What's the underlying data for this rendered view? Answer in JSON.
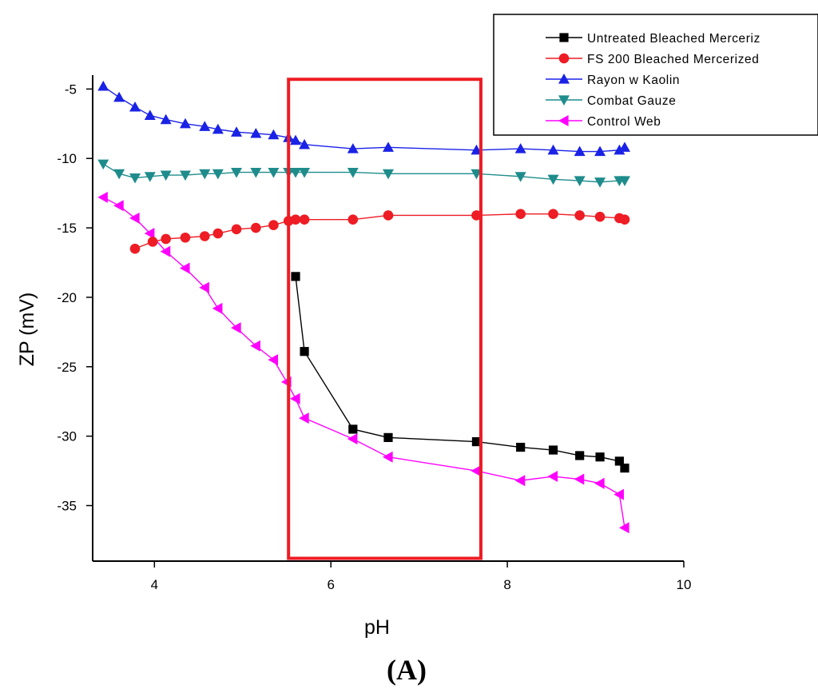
{
  "chart_data": {
    "type": "line",
    "xlabel": "pH",
    "ylabel": "ZP (mV)",
    "xlim": [
      3.3,
      10
    ],
    "ylim": [
      -39,
      -4
    ],
    "xticks": [
      4,
      6,
      8,
      10
    ],
    "yticks": [
      -5,
      -10,
      -15,
      -20,
      -25,
      -30,
      -35
    ],
    "panel_label": "(A)",
    "legend_position": "top-right",
    "highlight_box": {
      "x_range": [
        5.52,
        7.7
      ],
      "y_range": [
        -38.8,
        -4.3
      ],
      "color": "#ee1c24"
    },
    "series": [
      {
        "name": "Untreated Bleached Merceriz",
        "marker": "square",
        "color": "#000000",
        "x": [
          5.6,
          5.7,
          6.25,
          6.65,
          7.65,
          8.15,
          8.52,
          8.82,
          9.05,
          9.27,
          9.33
        ],
        "y": [
          -18.5,
          -23.9,
          -29.5,
          -30.1,
          -30.4,
          -30.8,
          -31.0,
          -31.4,
          -31.5,
          -31.8,
          -32.3
        ]
      },
      {
        "name": "FS 200 Bleached Mercerized",
        "marker": "circle",
        "color": "#ee1c24",
        "x": [
          3.78,
          3.98,
          4.13,
          4.35,
          4.57,
          4.72,
          4.93,
          5.15,
          5.35,
          5.52,
          5.6,
          5.7,
          6.25,
          6.65,
          7.65,
          8.15,
          8.52,
          8.82,
          9.05,
          9.27,
          9.33
        ],
        "y": [
          -16.5,
          -16.0,
          -15.8,
          -15.7,
          -15.6,
          -15.4,
          -15.1,
          -15.0,
          -14.8,
          -14.5,
          -14.4,
          -14.4,
          -14.4,
          -14.1,
          -14.1,
          -14.0,
          -14.0,
          -14.1,
          -14.2,
          -14.3,
          -14.4
        ]
      },
      {
        "name": "Rayon w Kaolin",
        "marker": "triangle-up",
        "color": "#1a22e6",
        "x": [
          3.42,
          3.6,
          3.78,
          3.95,
          4.13,
          4.35,
          4.57,
          4.72,
          4.93,
          5.15,
          5.35,
          5.52,
          5.6,
          5.7,
          6.25,
          6.65,
          7.65,
          8.15,
          8.52,
          8.82,
          9.05,
          9.27,
          9.33
        ],
        "y": [
          -4.8,
          -5.6,
          -6.3,
          -6.9,
          -7.2,
          -7.5,
          -7.7,
          -7.9,
          -8.1,
          -8.2,
          -8.3,
          -8.5,
          -8.7,
          -9.0,
          -9.3,
          -9.2,
          -9.4,
          -9.3,
          -9.4,
          -9.5,
          -9.5,
          -9.4,
          -9.2
        ]
      },
      {
        "name": "Combat Gauze",
        "marker": "triangle-down",
        "color": "#1f8c8c",
        "x": [
          3.42,
          3.6,
          3.78,
          3.95,
          4.13,
          4.35,
          4.57,
          4.72,
          4.93,
          5.15,
          5.35,
          5.52,
          5.6,
          5.7,
          6.25,
          6.65,
          7.65,
          8.15,
          8.52,
          8.82,
          9.05,
          9.27,
          9.33
        ],
        "y": [
          -10.4,
          -11.1,
          -11.4,
          -11.3,
          -11.2,
          -11.2,
          -11.1,
          -11.1,
          -11.0,
          -11.0,
          -11.0,
          -11.0,
          -11.0,
          -11.0,
          -11.0,
          -11.1,
          -11.1,
          -11.3,
          -11.5,
          -11.6,
          -11.7,
          -11.6,
          -11.6
        ]
      },
      {
        "name": "Control Web",
        "marker": "triangle-left",
        "color": "#ff00ff",
        "x": [
          3.42,
          3.6,
          3.78,
          3.95,
          4.13,
          4.35,
          4.57,
          4.72,
          4.93,
          5.15,
          5.35,
          5.5,
          5.6,
          5.7,
          6.25,
          6.65,
          7.65,
          8.15,
          8.52,
          8.82,
          9.05,
          9.27,
          9.33
        ],
        "y": [
          -12.8,
          -13.4,
          -14.3,
          -15.4,
          -16.7,
          -17.9,
          -19.3,
          -20.8,
          -22.2,
          -23.5,
          -24.5,
          -26.1,
          -27.3,
          -28.7,
          -30.2,
          -31.5,
          -32.5,
          -33.2,
          -32.9,
          -33.1,
          -33.4,
          -34.2,
          -36.6
        ]
      }
    ]
  }
}
